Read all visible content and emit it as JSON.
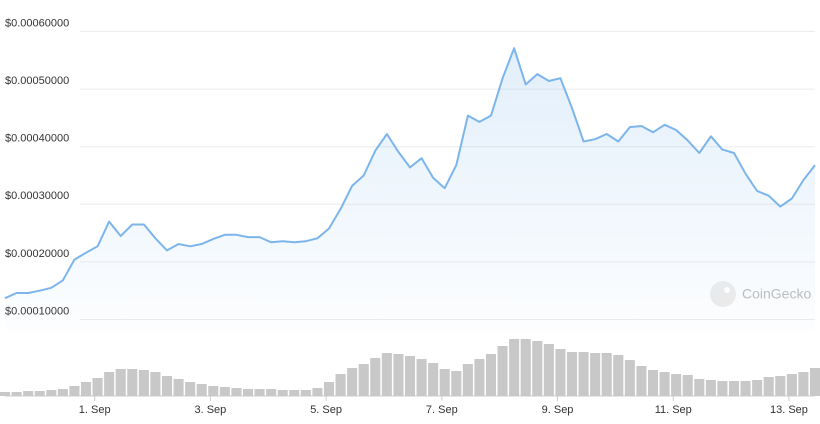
{
  "chart_data": {
    "type": "line",
    "x": [
      -0.55,
      -0.35,
      -0.15,
      0.05,
      0.25,
      0.45,
      0.65,
      0.85,
      1.05,
      1.25,
      1.45,
      1.65,
      1.85,
      2.05,
      2.25,
      2.45,
      2.65,
      2.85,
      3.05,
      3.25,
      3.45,
      3.65,
      3.85,
      4.05,
      4.25,
      4.45,
      4.65,
      4.85,
      5.05,
      5.25,
      5.45,
      5.65,
      5.85,
      6.05,
      6.25,
      6.45,
      6.65,
      6.85,
      7.05,
      7.25,
      7.45,
      7.65,
      7.85,
      8.05,
      8.25,
      8.45,
      8.65,
      8.85,
      9.05,
      9.25,
      9.45,
      9.65,
      9.85,
      10.05,
      10.25,
      10.45,
      10.65,
      10.85,
      11.05,
      11.25,
      11.45,
      11.65,
      11.85,
      12.05,
      12.25,
      12.45,
      12.65,
      12.85,
      13.05,
      13.25,
      13.45
    ],
    "series": [
      {
        "color": "#7cb5ec",
        "values": [
          0.000137,
          0.000146,
          0.000146,
          0.00015,
          0.000155,
          0.000168,
          0.000204,
          0.000216,
          0.000227,
          0.00027,
          0.000245,
          0.000265,
          0.000265,
          0.000241,
          0.00022,
          0.000231,
          0.000227,
          0.000231,
          0.00024,
          0.000247,
          0.000247,
          0.000243,
          0.000243,
          0.000234,
          0.000236,
          0.000234,
          0.000236,
          0.000241,
          0.000258,
          0.000292,
          0.000332,
          0.00035,
          0.000393,
          0.000422,
          0.000391,
          0.000364,
          0.00038,
          0.000346,
          0.000328,
          0.000368,
          0.000454,
          0.000443,
          0.000454,
          0.000519,
          0.000571,
          0.000508,
          0.000526,
          0.000514,
          0.000519,
          0.000467,
          0.000409,
          0.000413,
          0.000422,
          0.000409,
          0.000434,
          0.000436,
          0.000425,
          0.000438,
          0.000429,
          0.000411,
          0.000389,
          0.000418,
          0.000395,
          0.000389,
          0.000353,
          0.000323,
          0.000315,
          0.000296,
          0.00031,
          0.000342,
          0.000368
        ]
      },
      {
        "color": "#c8c8c8",
        "axis": "y2",
        "values": [
          4,
          4,
          5,
          5,
          6,
          7,
          10,
          14,
          18,
          24,
          27,
          27,
          26,
          24,
          20,
          17,
          14,
          12,
          10,
          9,
          8,
          7,
          7,
          7,
          6,
          6,
          6,
          8,
          14,
          22,
          28,
          32,
          38,
          43,
          42,
          40,
          37,
          33,
          27,
          25,
          32,
          37,
          42,
          50,
          57,
          57,
          55,
          52,
          47,
          44,
          44,
          43,
          43,
          41,
          36,
          30,
          26,
          24,
          22,
          21,
          17,
          16,
          15,
          15,
          15,
          16,
          19,
          20,
          22,
          24,
          28
        ]
      }
    ],
    "xlim": [
      -0.55,
      13.45
    ],
    "xticks": [
      {
        "value": 1,
        "label": "1. Sep"
      },
      {
        "value": 3,
        "label": "3. Sep"
      },
      {
        "value": 5,
        "label": "5. Sep"
      },
      {
        "value": 7,
        "label": "7. Sep"
      },
      {
        "value": 9,
        "label": "9. Sep"
      },
      {
        "value": 11,
        "label": "11. Sep"
      },
      {
        "value": 13,
        "label": "13. Sep"
      }
    ],
    "ylim": [
      8e-05,
      0.00062
    ],
    "yticks": [
      {
        "value": 0.0001,
        "label": "$0.00010000"
      },
      {
        "value": 0.0002,
        "label": "$0.00020000"
      },
      {
        "value": 0.0003,
        "label": "$0.00030000"
      },
      {
        "value": 0.0004,
        "label": "$0.00040000"
      },
      {
        "value": 0.0005,
        "label": "$0.00050000"
      },
      {
        "value": 0.0006,
        "label": "$0.00060000"
      }
    ],
    "y2lim": [
      0,
      60
    ],
    "grid": true,
    "watermark": "CoinGecko"
  }
}
